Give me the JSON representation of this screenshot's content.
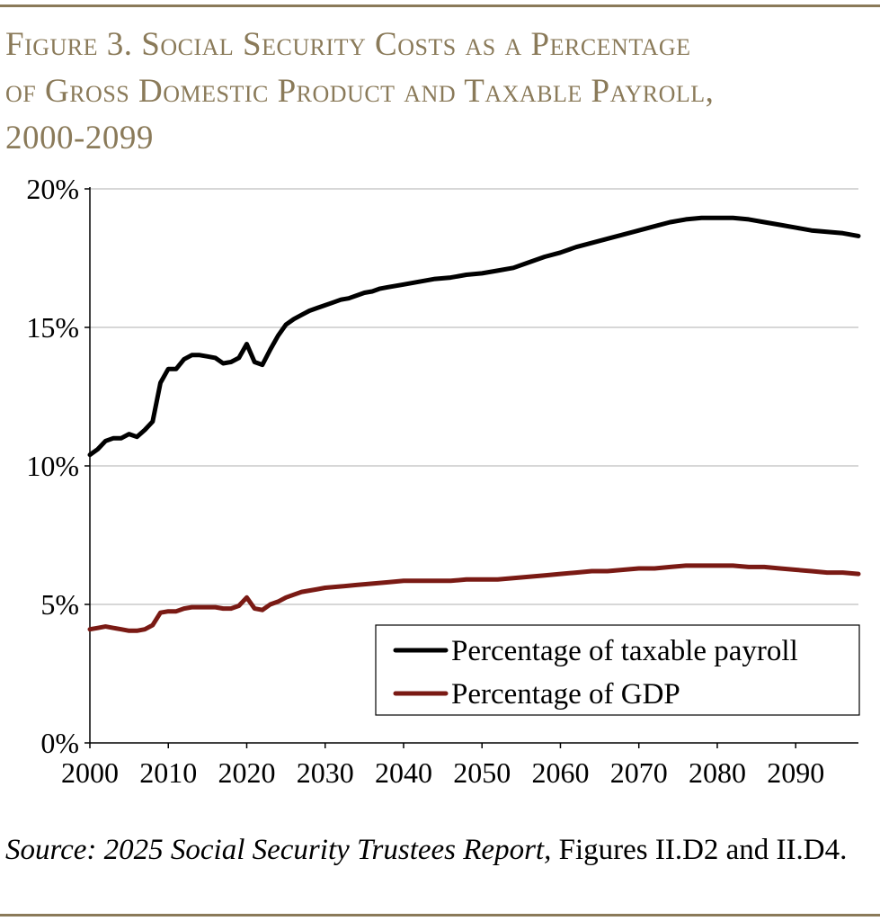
{
  "title_lines": [
    "Figure 3. Social Security Costs as a Percentage",
    "of Gross Domestic Product and Taxable Payroll,",
    "2000-2099"
  ],
  "source": {
    "italic": "Source: 2025 Social Security Trustees Report,",
    "rest": " Figures II.D2 and II.D4."
  },
  "colors": {
    "accent": "#8a7a59",
    "payroll": "#000000",
    "gdp": "#7a1a14",
    "grid": "#bfbfbf"
  },
  "chart_data": {
    "type": "line",
    "title": "Figure 3. Social Security Costs as a Percentage of Gross Domestic Product and Taxable Payroll, 2000-2099",
    "xlabel": "",
    "ylabel": "",
    "xlim": [
      2000,
      2098
    ],
    "ylim": [
      0,
      20
    ],
    "x_ticks": [
      2000,
      2010,
      2020,
      2030,
      2040,
      2050,
      2060,
      2070,
      2080,
      2090
    ],
    "x_tick_labels": [
      "2000",
      "2010",
      "2020",
      "2030",
      "2040",
      "2050",
      "2060",
      "2070",
      "2080",
      "2090"
    ],
    "y_ticks": [
      0,
      5,
      10,
      15,
      20
    ],
    "y_tick_labels": [
      "0%",
      "5%",
      "10%",
      "15%",
      "20%"
    ],
    "grid": true,
    "legend_position": "bottom-right",
    "series": [
      {
        "name": "Percentage of taxable payroll",
        "color": "#000000",
        "x": [
          2000,
          2001,
          2002,
          2003,
          2004,
          2005,
          2006,
          2007,
          2008,
          2009,
          2010,
          2011,
          2012,
          2013,
          2014,
          2015,
          2016,
          2017,
          2018,
          2019,
          2020,
          2021,
          2022,
          2023,
          2024,
          2025,
          2026,
          2027,
          2028,
          2029,
          2030,
          2031,
          2032,
          2033,
          2034,
          2035,
          2036,
          2037,
          2038,
          2039,
          2040,
          2042,
          2044,
          2046,
          2048,
          2050,
          2052,
          2054,
          2056,
          2058,
          2060,
          2062,
          2064,
          2066,
          2068,
          2070,
          2072,
          2074,
          2076,
          2078,
          2080,
          2082,
          2084,
          2086,
          2088,
          2090,
          2092,
          2094,
          2096,
          2098
        ],
        "values": [
          10.4,
          10.6,
          10.9,
          11.0,
          11.0,
          11.15,
          11.05,
          11.3,
          11.6,
          13.0,
          13.5,
          13.5,
          13.85,
          14.0,
          14.0,
          13.95,
          13.9,
          13.7,
          13.75,
          13.9,
          14.4,
          13.75,
          13.65,
          14.2,
          14.7,
          15.1,
          15.3,
          15.45,
          15.6,
          15.7,
          15.8,
          15.9,
          16.0,
          16.05,
          16.15,
          16.25,
          16.3,
          16.4,
          16.45,
          16.5,
          16.55,
          16.65,
          16.75,
          16.8,
          16.9,
          16.95,
          17.05,
          17.15,
          17.35,
          17.55,
          17.7,
          17.9,
          18.05,
          18.2,
          18.35,
          18.5,
          18.65,
          18.8,
          18.9,
          18.95,
          18.95,
          18.95,
          18.9,
          18.8,
          18.7,
          18.6,
          18.5,
          18.45,
          18.4,
          18.3
        ]
      },
      {
        "name": "Percentage of GDP",
        "color": "#7a1a14",
        "x": [
          2000,
          2001,
          2002,
          2003,
          2004,
          2005,
          2006,
          2007,
          2008,
          2009,
          2010,
          2011,
          2012,
          2013,
          2014,
          2015,
          2016,
          2017,
          2018,
          2019,
          2020,
          2021,
          2022,
          2023,
          2024,
          2025,
          2026,
          2027,
          2028,
          2029,
          2030,
          2032,
          2034,
          2036,
          2038,
          2040,
          2042,
          2044,
          2046,
          2048,
          2050,
          2052,
          2054,
          2056,
          2058,
          2060,
          2062,
          2064,
          2066,
          2068,
          2070,
          2072,
          2074,
          2076,
          2078,
          2080,
          2082,
          2084,
          2086,
          2088,
          2090,
          2092,
          2094,
          2096,
          2098
        ],
        "values": [
          4.1,
          4.15,
          4.2,
          4.15,
          4.1,
          4.05,
          4.05,
          4.1,
          4.25,
          4.7,
          4.75,
          4.75,
          4.85,
          4.9,
          4.9,
          4.9,
          4.9,
          4.85,
          4.85,
          4.95,
          5.25,
          4.85,
          4.8,
          5.0,
          5.1,
          5.25,
          5.35,
          5.45,
          5.5,
          5.55,
          5.6,
          5.65,
          5.7,
          5.75,
          5.8,
          5.85,
          5.85,
          5.85,
          5.85,
          5.9,
          5.9,
          5.9,
          5.95,
          6.0,
          6.05,
          6.1,
          6.15,
          6.2,
          6.2,
          6.25,
          6.3,
          6.3,
          6.35,
          6.4,
          6.4,
          6.4,
          6.4,
          6.35,
          6.35,
          6.3,
          6.25,
          6.2,
          6.15,
          6.15,
          6.1
        ]
      }
    ]
  }
}
